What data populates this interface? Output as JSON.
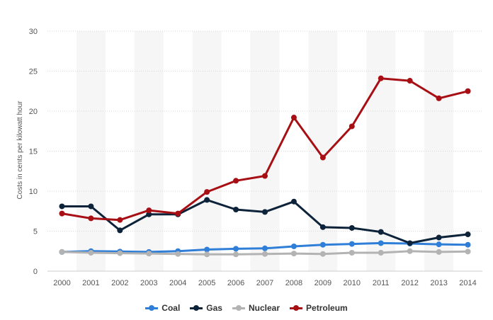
{
  "chart_data": {
    "type": "line",
    "title": "",
    "xlabel": "",
    "ylabel": "Costs in cents per kilowatt hour",
    "x": [
      "2000",
      "2001",
      "2002",
      "2003",
      "2004",
      "2005",
      "2006",
      "2007",
      "2008",
      "2009",
      "2010",
      "2011",
      "2012",
      "2013",
      "2014"
    ],
    "ylim": [
      0,
      30
    ],
    "yticks": [
      0,
      5,
      10,
      15,
      20,
      25,
      30
    ],
    "grid": true,
    "legend_position": "bottom",
    "series": [
      {
        "name": "Coal",
        "color": "#2f7ed8",
        "values": [
          2.4,
          2.5,
          2.45,
          2.4,
          2.5,
          2.7,
          2.8,
          2.85,
          3.1,
          3.3,
          3.4,
          3.5,
          3.45,
          3.35,
          3.3
        ]
      },
      {
        "name": "Gas",
        "color": "#0d233a",
        "values": [
          8.1,
          8.1,
          5.1,
          7.1,
          7.1,
          8.9,
          7.7,
          7.4,
          8.7,
          5.5,
          5.4,
          4.9,
          3.5,
          4.2,
          4.6
        ]
      },
      {
        "name": "Nuclear",
        "color": "#b3b3b3",
        "values": [
          2.4,
          2.3,
          2.25,
          2.2,
          2.15,
          2.1,
          2.1,
          2.15,
          2.2,
          2.15,
          2.3,
          2.3,
          2.5,
          2.4,
          2.45
        ]
      },
      {
        "name": "Petroleum",
        "color": "#a70f14",
        "values": [
          7.2,
          6.6,
          6.4,
          7.6,
          7.2,
          9.9,
          11.3,
          11.9,
          19.2,
          14.2,
          18.1,
          24.1,
          23.8,
          21.6,
          22.5
        ]
      }
    ]
  }
}
